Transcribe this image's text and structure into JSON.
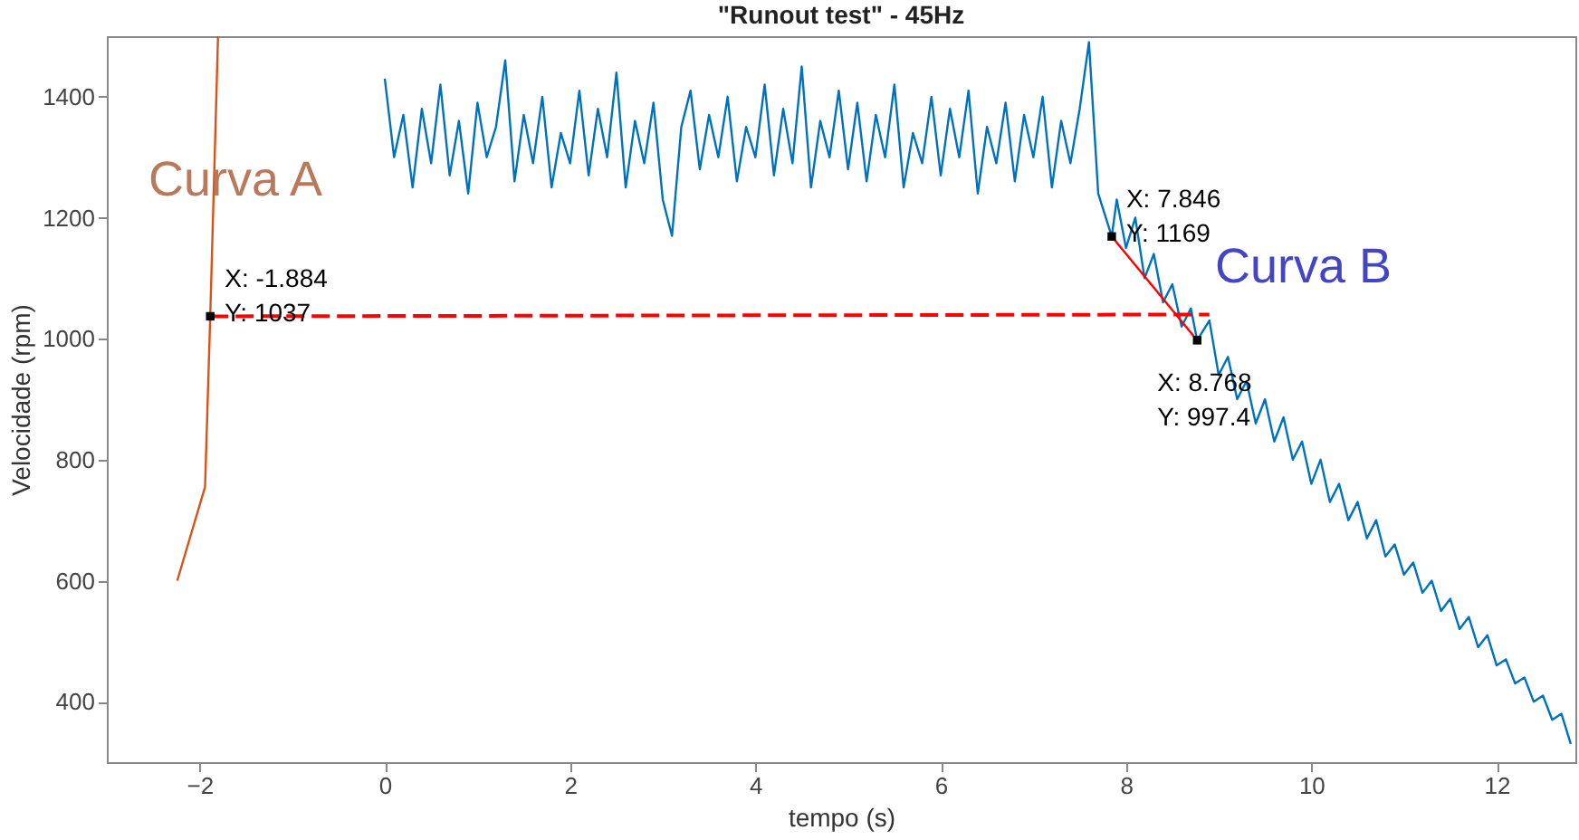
{
  "chart_data": {
    "type": "line",
    "title": "\"Runout test\" - 45Hz",
    "xlabel": "tempo (s)",
    "ylabel": "Velocidade (rpm)",
    "xlim": [
      -3,
      12.85
    ],
    "ylim": [
      300,
      1500
    ],
    "xticks": [
      -2,
      0,
      2,
      4,
      6,
      8,
      10,
      12
    ],
    "yticks": [
      400,
      600,
      800,
      1000,
      1200,
      1400
    ],
    "series": [
      {
        "color": "#d95319",
        "line_style": "solid",
        "x": [
          -2.24,
          -1.94,
          -1.884,
          -1.8
        ],
        "values": [
          600,
          755,
          1037,
          1500
        ]
      },
      {
        "color": "#0072bd",
        "line_style": "solid",
        "x": [
          0.0,
          0.1,
          0.2,
          0.3,
          0.4,
          0.5,
          0.6,
          0.7,
          0.8,
          0.9,
          1.0,
          1.1,
          1.2,
          1.3,
          1.4,
          1.5,
          1.6,
          1.7,
          1.8,
          1.9,
          2.0,
          2.1,
          2.2,
          2.3,
          2.4,
          2.5,
          2.6,
          2.7,
          2.8,
          2.9,
          3.0,
          3.1,
          3.2,
          3.3,
          3.4,
          3.5,
          3.6,
          3.7,
          3.8,
          3.9,
          4.0,
          4.1,
          4.2,
          4.3,
          4.4,
          4.5,
          4.6,
          4.7,
          4.8,
          4.9,
          5.0,
          5.1,
          5.2,
          5.3,
          5.4,
          5.5,
          5.6,
          5.7,
          5.8,
          5.9,
          6.0,
          6.1,
          6.2,
          6.3,
          6.4,
          6.5,
          6.6,
          6.7,
          6.8,
          6.9,
          7.0,
          7.1,
          7.2,
          7.3,
          7.4,
          7.5,
          7.6,
          7.7,
          7.846,
          7.9,
          8.0,
          8.1,
          8.2,
          8.3,
          8.4,
          8.5,
          8.6,
          8.7,
          8.768,
          8.9,
          9.0,
          9.1,
          9.2,
          9.3,
          9.4,
          9.5,
          9.6,
          9.7,
          9.8,
          9.9,
          10.0,
          10.1,
          10.2,
          10.3,
          10.4,
          10.5,
          10.6,
          10.7,
          10.8,
          10.9,
          11.0,
          11.1,
          11.2,
          11.3,
          11.4,
          11.5,
          11.6,
          11.7,
          11.8,
          11.9,
          12.0,
          12.1,
          12.2,
          12.3,
          12.4,
          12.5,
          12.6,
          12.7,
          12.8
        ],
        "values": [
          1430,
          1300,
          1370,
          1250,
          1380,
          1290,
          1420,
          1270,
          1360,
          1240,
          1390,
          1300,
          1350,
          1460,
          1260,
          1370,
          1290,
          1400,
          1250,
          1340,
          1290,
          1410,
          1270,
          1380,
          1300,
          1440,
          1250,
          1360,
          1290,
          1390,
          1230,
          1170,
          1350,
          1410,
          1280,
          1370,
          1300,
          1400,
          1260,
          1350,
          1300,
          1420,
          1270,
          1380,
          1290,
          1450,
          1250,
          1360,
          1300,
          1410,
          1280,
          1390,
          1260,
          1370,
          1300,
          1420,
          1250,
          1340,
          1290,
          1400,
          1270,
          1380,
          1300,
          1410,
          1240,
          1350,
          1290,
          1390,
          1260,
          1370,
          1300,
          1400,
          1250,
          1360,
          1290,
          1380,
          1490,
          1240,
          1169,
          1230,
          1150,
          1200,
          1100,
          1140,
          1060,
          1090,
          1020,
          1050,
          997.4,
          1030,
          940,
          970,
          900,
          930,
          860,
          900,
          830,
          870,
          800,
          830,
          760,
          800,
          730,
          760,
          700,
          730,
          670,
          700,
          640,
          660,
          610,
          630,
          580,
          600,
          550,
          570,
          520,
          540,
          490,
          510,
          460,
          470,
          430,
          440,
          400,
          410,
          370,
          380,
          330
        ]
      },
      {
        "color": "#ff0000",
        "line_style": "dashed",
        "x": [
          -1.884,
          8.9
        ],
        "values": [
          1037,
          1040
        ]
      },
      {
        "color": "#ff0000",
        "line_style": "solid",
        "x": [
          7.846,
          8.768
        ],
        "values": [
          1169,
          997.4
        ]
      },
      {
        "type": "scatter",
        "color": "#000000",
        "marker": "square",
        "x": [
          -1.884,
          7.846,
          8.768
        ],
        "values": [
          1037,
          1169,
          997.4
        ]
      }
    ],
    "annotations": [
      "Curva A",
      "Curva B",
      {
        "text": "X: -1.884\nY: 1037",
        "x": -1.884,
        "y": 1037
      },
      {
        "text": "X: 7.846\nY: 1169",
        "x": 7.846,
        "y": 1169
      },
      {
        "text": "X: 8.768\nY: 997.4",
        "x": 8.768,
        "y": 997.4
      }
    ]
  }
}
